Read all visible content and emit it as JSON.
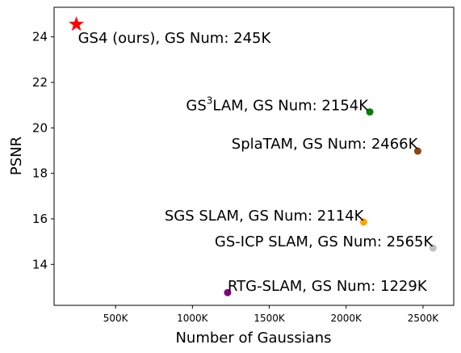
{
  "chart_data": {
    "type": "scatter",
    "xlabel": "Number of Gaussians",
    "ylabel": "PSNR",
    "xlim": [
      100,
      2700
    ],
    "ylim": [
      12.2,
      25.3
    ],
    "x_ticks": [
      {
        "value": 500,
        "label": "500K"
      },
      {
        "value": 1000,
        "label": "1000K"
      },
      {
        "value": 1500,
        "label": "1500K"
      },
      {
        "value": 2000,
        "label": "2000K"
      },
      {
        "value": 2500,
        "label": "2500K"
      }
    ],
    "y_ticks": [
      {
        "value": 14,
        "label": "14"
      },
      {
        "value": 16,
        "label": "16"
      },
      {
        "value": 18,
        "label": "18"
      },
      {
        "value": 20,
        "label": "20"
      },
      {
        "value": 22,
        "label": "22"
      },
      {
        "value": 24,
        "label": "24"
      }
    ],
    "points": [
      {
        "key": "gs4",
        "label": "GS4 (ours), GS Num: 245K",
        "x": 245,
        "y": 24.55,
        "color": "#ff0000",
        "marker": "star"
      },
      {
        "key": "gs3lam",
        "label_prefix": "GS",
        "label_sup": "3",
        "label_suffix": "LAM, GS Num: 2154K",
        "x": 2154,
        "y": 20.7,
        "color": "#008000",
        "marker": "circle"
      },
      {
        "key": "splatam",
        "label": "SplaTAM, GS Num: 2466K",
        "x": 2466,
        "y": 18.98,
        "color": "#8b4513",
        "marker": "circle"
      },
      {
        "key": "sgs-slam",
        "label": "SGS SLAM, GS Num: 2114K",
        "x": 2114,
        "y": 15.86,
        "color": "#ffa500",
        "marker": "circle"
      },
      {
        "key": "gs-icp-slam",
        "label": "GS-ICP SLAM, GS Num: 2565K",
        "x": 2565,
        "y": 14.72,
        "color": "#c0c0c0",
        "marker": "circle"
      },
      {
        "key": "rtg-slam",
        "label": "RTG-SLAM, GS Num: 1229K",
        "x": 1229,
        "y": 12.76,
        "color": "#800080",
        "marker": "circle"
      }
    ]
  }
}
